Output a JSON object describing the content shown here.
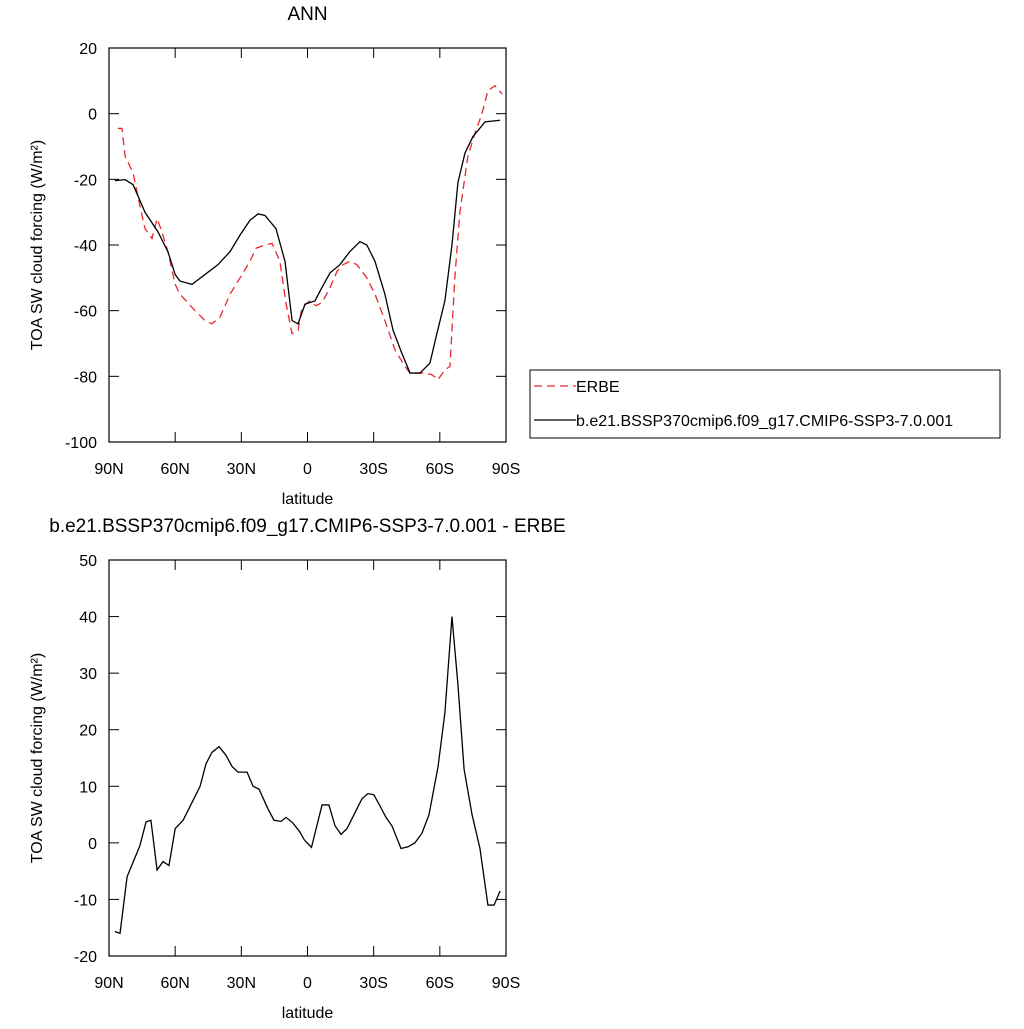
{
  "chart_data": [
    {
      "type": "line",
      "title": "ANN",
      "xlabel": "latitude",
      "ylabel": "TOA SW cloud forcing (W/m²)",
      "xlim": [
        90,
        -90
      ],
      "xticks": [
        {
          "value": 90,
          "label": "90N"
        },
        {
          "value": 60,
          "label": "60N"
        },
        {
          "value": 30,
          "label": "30N"
        },
        0,
        {
          "value": -30,
          "label": "30S"
        },
        {
          "value": -60,
          "label": "60S"
        },
        {
          "value": -90,
          "label": "90S"
        }
      ],
      "ylim": [
        -100,
        20
      ],
      "yticks": [
        20,
        0,
        -20,
        -40,
        -60,
        -80,
        -100
      ],
      "legend": "right",
      "series": [
        {
          "name": "ERBE",
          "color": "#e8282d",
          "dash": true,
          "x": [
            86,
            84.1,
            82.7,
            79.1,
            76,
            73.7,
            70.5,
            68.2,
            66,
            63.3,
            60,
            57.8,
            51,
            46.5,
            43.3,
            39.7,
            35.1,
            30.6,
            26.1,
            23.4,
            19.3,
            16.1,
            12.5,
            9.7,
            7,
            4.3,
            2.5,
            -1.1,
            -3.9,
            -6.6,
            -10.2,
            -13.4,
            -16.1,
            -19.2,
            -22.4,
            -26.9,
            -30.6,
            -35.1,
            -39.7,
            -44.2,
            -46.5,
            -53.3,
            -56.4,
            -59.2,
            -62.3,
            -64.6,
            -66.8,
            -69.1,
            -72.7,
            -75.9,
            -79.1,
            -81.8,
            -85,
            -88.2
          ],
          "values": [
            -4.5,
            -4.5,
            -13,
            -18,
            -28,
            -35,
            -38,
            -32,
            -36,
            -42,
            -52,
            -55,
            -60,
            -63,
            -64,
            -62,
            -55,
            -50,
            -45,
            -41,
            -40,
            -39.5,
            -45,
            -58,
            -67,
            -66,
            -59,
            -57,
            -58.5,
            -57.5,
            -53,
            -48,
            -46,
            -45,
            -46,
            -50,
            -55,
            -63,
            -72,
            -77,
            -79,
            -79,
            -79.5,
            -81,
            -78,
            -77,
            -50,
            -30,
            -13,
            -6,
            0,
            7,
            8.5,
            6
          ]
        },
        {
          "name": "b.e21.BSSP370cmip6.f09_g17.CMIP6-SSP3-7.0.001",
          "color": "#000000",
          "dash": false,
          "x": [
            87.3,
            82.7,
            79.1,
            73.7,
            67.8,
            63.3,
            60,
            57.8,
            52.4,
            46.5,
            40.6,
            35.1,
            30.6,
            26.1,
            22.4,
            19.3,
            14.3,
            10.2,
            7,
            4.3,
            1.1,
            -3.4,
            -5.7,
            -10.2,
            -14.7,
            -19.2,
            -23.8,
            -26.9,
            -30.6,
            -35.1,
            -38.8,
            -42.8,
            -46.5,
            -51,
            -55.5,
            -58.3,
            -62.3,
            -65.5,
            -68.2,
            -71.4,
            -75,
            -80.5,
            -87.3
          ],
          "values": [
            -20.4,
            -20.1,
            -21.6,
            -30,
            -36,
            -42,
            -49,
            -51,
            -52,
            -49,
            -46,
            -42,
            -37,
            -32.5,
            -30.5,
            -31,
            -35,
            -45,
            -63,
            -64,
            -58,
            -57,
            -54,
            -48.5,
            -46,
            -42,
            -39,
            -40,
            -45,
            -55,
            -66,
            -73,
            -79,
            -79,
            -76,
            -68,
            -57,
            -40,
            -21,
            -12,
            -7,
            -2.5,
            -2
          ]
        }
      ]
    },
    {
      "type": "line",
      "title": "b.e21.BSSP370cmip6.f09_g17.CMIP6-SSP3-7.0.001 - ERBE",
      "xlabel": "latitude",
      "ylabel": "TOA SW cloud forcing (W/m²)",
      "xlim": [
        90,
        -90
      ],
      "xticks": [
        {
          "value": 90,
          "label": "90N"
        },
        {
          "value": 60,
          "label": "60N"
        },
        {
          "value": 30,
          "label": "30N"
        },
        0,
        {
          "value": -30,
          "label": "30S"
        },
        {
          "value": -60,
          "label": "60S"
        },
        {
          "value": -90,
          "label": "90S"
        }
      ],
      "ylim": [
        -20,
        50
      ],
      "yticks": [
        50,
        40,
        30,
        20,
        10,
        0,
        -10,
        -20
      ],
      "series": [
        {
          "color": "#000000",
          "dash": false,
          "x": [
            87.3,
            85,
            81.8,
            76,
            73.2,
            71,
            68.2,
            65.5,
            62.8,
            60,
            56.4,
            51.9,
            48.7,
            46,
            43.3,
            40.1,
            37,
            34.2,
            31.5,
            27.4,
            24.7,
            22,
            17.9,
            15.2,
            12,
            9.7,
            6.6,
            3.6,
            1.4,
            -1.8,
            -6.6,
            -9.7,
            -12.5,
            -15.2,
            -17.9,
            -21.1,
            -24.7,
            -27.4,
            -30.1,
            -32.9,
            -35.6,
            -38.3,
            -42.4,
            -45.6,
            -48.7,
            -51.9,
            -55.1,
            -59.2,
            -62.3,
            -65.5,
            -68.2,
            -71,
            -74.6,
            -78.2,
            -81.8,
            -84.6,
            -87.3
          ],
          "values": [
            -15.7,
            -16,
            -6,
            -0.5,
            3.7,
            4,
            -4.8,
            -3.3,
            -4,
            2.5,
            4,
            7.5,
            10,
            14,
            16,
            17,
            15.5,
            13.5,
            12.5,
            12.5,
            10,
            9.5,
            6,
            4,
            3.8,
            4.5,
            3.5,
            2,
            0.5,
            -0.8,
            6.7,
            6.7,
            3,
            1.5,
            2.5,
            5,
            7.8,
            8.7,
            8.5,
            6.5,
            4.5,
            3,
            -1,
            -0.7,
            0,
            1.7,
            5,
            13.5,
            23,
            40,
            28,
            13,
            5,
            -1,
            -11,
            -11,
            -8.5
          ]
        }
      ]
    }
  ]
}
